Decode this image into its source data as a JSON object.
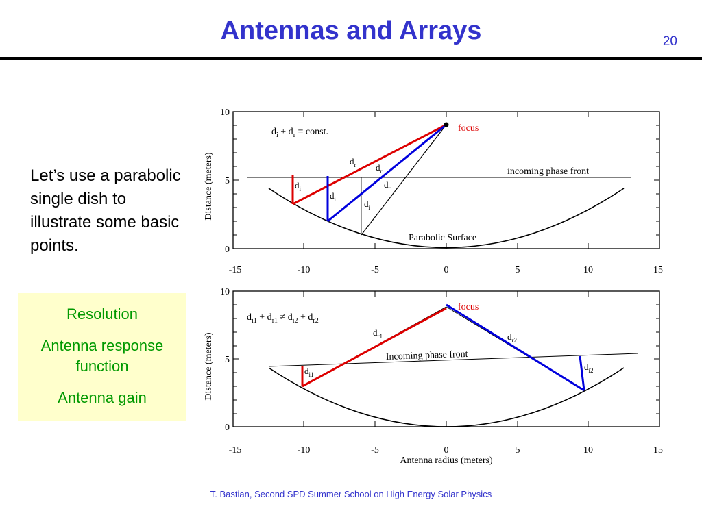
{
  "slide": {
    "title": "Antennas and Arrays",
    "number": "20",
    "intro": "Let’s use a parabolic single dish to illustrate some basic points.",
    "topics": [
      "Resolution",
      "Antenna response function",
      "Antenna gain"
    ],
    "footer": "T. Bastian, Second SPD Summer School on High Energy Solar Physics"
  },
  "plot_top": {
    "ylabel": "Distance (meters)",
    "xticks": [
      "-15",
      "-10",
      "-5",
      "0",
      "5",
      "10",
      "15"
    ],
    "yticks": [
      "0",
      "5",
      "10"
    ],
    "equation": {
      "a": "d",
      "a_sub": "i",
      "plus": " + d",
      "b_sub": "r",
      "rest": " = const."
    },
    "focus": "focus",
    "phase_front": "incoming phase front",
    "surface": "Parabolic Surface",
    "labels": {
      "dr1": {
        "base": "d",
        "sub": "r"
      },
      "dr2": {
        "base": "d",
        "sub": "r"
      },
      "dr3": {
        "base": "d",
        "sub": "r"
      },
      "di1": {
        "base": "d",
        "sub": "i"
      },
      "di2": {
        "base": "d",
        "sub": "i"
      },
      "di3": {
        "base": "d",
        "sub": "i"
      }
    }
  },
  "plot_bottom": {
    "ylabel": "Distance (meters)",
    "xlabel": "Antenna radius (meters)",
    "xticks": [
      "-15",
      "-10",
      "-5",
      "0",
      "5",
      "10",
      "15"
    ],
    "yticks": [
      "0",
      "5",
      "10"
    ],
    "equation": {
      "a": "d",
      "a_sub": "i1",
      "p1": " + d",
      "b_sub": "r1",
      "neq": " ≠ ",
      "c": "d",
      "c_sub": "i2",
      "p2": " + d",
      "d_sub": "r2"
    },
    "focus": "focus",
    "phase_front": "Incoming phase front",
    "labels": {
      "dr1": {
        "base": "d",
        "sub": "r1"
      },
      "dr2": {
        "base": "d",
        "sub": "r2"
      },
      "di1": {
        "base": "d",
        "sub": "i1"
      },
      "di2": {
        "base": "d",
        "sub": "i2"
      }
    }
  },
  "colors": {
    "title": "#3333cc",
    "topics_text": "#009900",
    "topics_bg": "#ffffcc",
    "ray_red": "#dd0000",
    "ray_blue": "#0000dd",
    "focus_label": "#dd0000"
  }
}
